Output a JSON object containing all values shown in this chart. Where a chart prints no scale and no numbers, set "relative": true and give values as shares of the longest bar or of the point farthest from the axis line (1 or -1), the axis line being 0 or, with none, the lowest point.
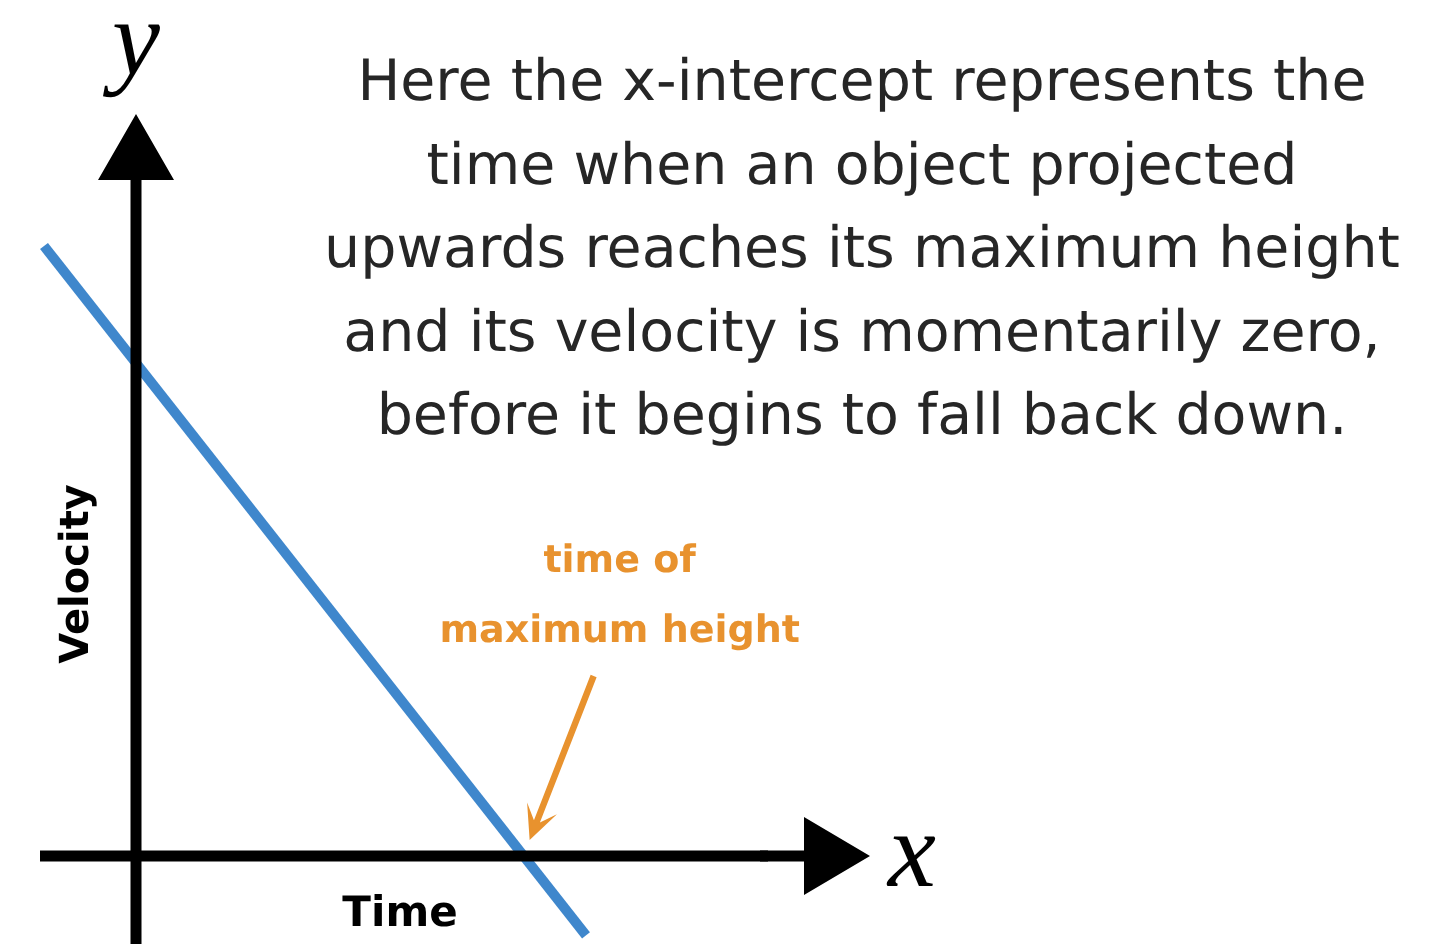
{
  "chart_data": {
    "type": "line",
    "xlabel": "Time",
    "ylabel": "Velocity",
    "categories": [
      null,
      null
    ],
    "relative": true,
    "series": [
      {
        "color": "#3f87cc",
        "values": [
          1,
          -0.13
        ]
      }
    ],
    "annotations": [
      "Here the x-intercept represents the\ntime when an object projected\nupwards reaches its maximum height\nand its velocity is momentarily zero,\nbefore it begins to fall back down.",
      "time of\nmaximum height",
      "x",
      "y"
    ]
  }
}
